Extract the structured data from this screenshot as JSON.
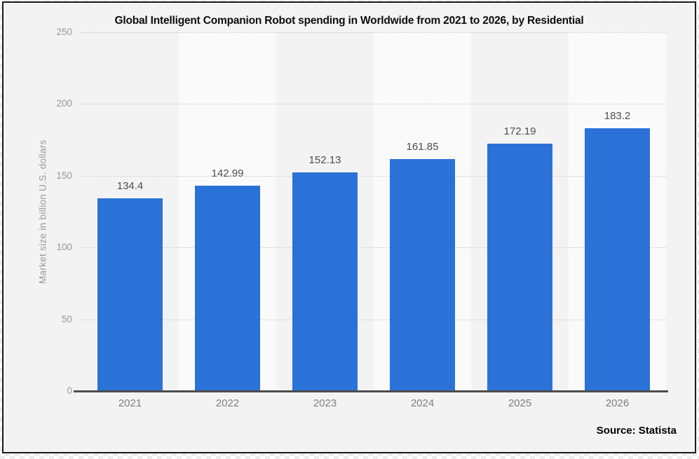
{
  "page": {
    "title": "Global Intelligent Companion Robot spending in Worldwide from 2021 to 2026, by Residential",
    "source_label": "Source: Statista"
  },
  "chart_data": {
    "type": "bar",
    "title": "Global Intelligent Companion Robot spending in Worldwide from 2021 to 2026, by Residential",
    "categories": [
      "2021",
      "2022",
      "2023",
      "2024",
      "2025",
      "2026"
    ],
    "values": [
      134.4,
      142.99,
      152.13,
      161.85,
      172.19,
      183.2
    ],
    "data_labels": [
      "134.4",
      "142.99",
      "152.13",
      "161.85",
      "172.19",
      "183.2"
    ],
    "xlabel": "",
    "ylabel": "Market size in billion U.S. dollars",
    "ylim": [
      0,
      250
    ],
    "yticks": [
      0,
      50,
      100,
      150,
      200,
      250
    ],
    "grid": true,
    "legend": false,
    "source": "Source: Statista"
  },
  "colors": {
    "bar": "#2b72d8",
    "frame_border": "#1b1b1b",
    "background": "#f3f3f3",
    "band_odd": "#f3f3f3",
    "band_even": "#fafafa",
    "grid_line": "#c9c9c9",
    "axis_line": "#4d4d4d",
    "tick_label": "#969696",
    "value_label": "#4d4d4d",
    "category_label": "#7f7f7f",
    "axis_title": "#9a9a9a"
  }
}
